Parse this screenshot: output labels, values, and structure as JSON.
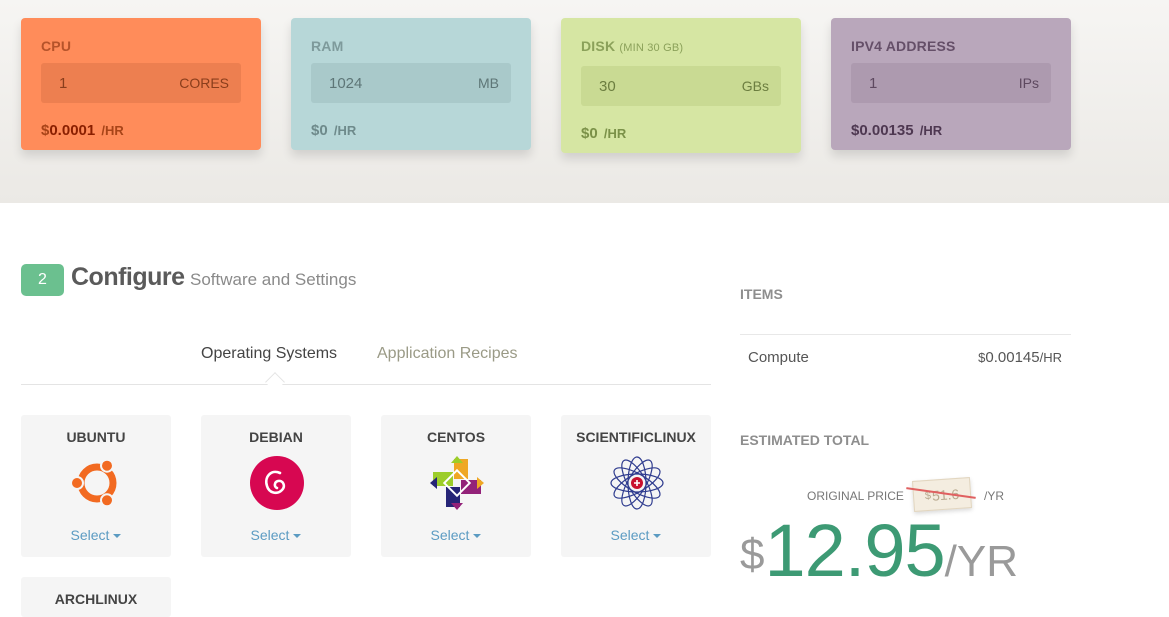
{
  "resources": {
    "cpu": {
      "title": "CPU",
      "value": "1",
      "unit": "CORES",
      "currency": "$",
      "price": "0.0001",
      "per": "/HR"
    },
    "ram": {
      "title": "RAM",
      "value": "1024",
      "unit": "MB",
      "currency": "$",
      "price": "0",
      "per": "/HR"
    },
    "disk": {
      "title": "DISK",
      "subtitle": "(MIN 30 GB)",
      "value": "30",
      "unit": "GBs",
      "currency": "$",
      "price": "0",
      "per": "/HR"
    },
    "ipv4": {
      "title": "IPV4 ADDRESS",
      "value": "1",
      "unit": "IPs",
      "currency": "$",
      "price": "0.00135",
      "per": "/HR"
    }
  },
  "configure": {
    "step": "2",
    "title": "Configure",
    "subtitle": "Software and Settings",
    "tabs": [
      "Operating Systems",
      "Application Recipes"
    ]
  },
  "os_list": [
    {
      "name": "UBUNTU",
      "action": "Select"
    },
    {
      "name": "DEBIAN",
      "action": "Select"
    },
    {
      "name": "CENTOS",
      "action": "Select"
    },
    {
      "name": "SCIENTIFICLINUX",
      "action": "Select"
    },
    {
      "name": "ARCHLINUX",
      "action": ""
    }
  ],
  "summary": {
    "items_heading": "ITEMS",
    "items": [
      {
        "name": "Compute",
        "currency": "$",
        "price": "0.00145",
        "per": "/HR"
      }
    ],
    "estimated_heading": "ESTIMATED TOTAL",
    "original_label": "ORIGINAL PRICE",
    "original_currency": "$",
    "original_price": "51.6",
    "original_per": "/YR",
    "total_currency": "$",
    "total_amount": "12.95",
    "total_per": "/YR"
  },
  "colors": {
    "cpu": "#ff8c5a",
    "ram": "#b7d7d8",
    "disk": "#d6e6a3",
    "ipv4": "#b9a7bb",
    "accent": "#3d9a74",
    "link": "#5b9bc2"
  }
}
